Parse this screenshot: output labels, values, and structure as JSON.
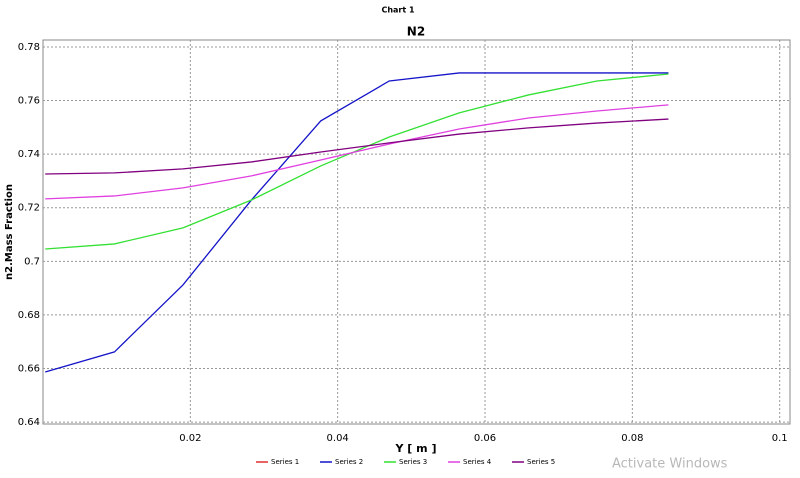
{
  "chart_data": {
    "type": "line",
    "window_title": "Chart 1",
    "title": "N2",
    "x_label": "Y [ m ]",
    "y_label": "n2.Mass Fraction",
    "x": [
      0.0003,
      0.0097,
      0.019,
      0.0283,
      0.0377,
      0.047,
      0.0565,
      0.0659,
      0.0752,
      0.0849
    ],
    "series": [
      {
        "name": "Series 1",
        "color": "#e03030",
        "values": [
          null,
          null,
          null,
          null,
          null,
          null,
          null,
          null,
          null,
          null
        ]
      },
      {
        "name": "Series 2",
        "color": "#1414c8",
        "values": [
          0.6587,
          0.6662,
          0.6912,
          0.7229,
          0.7524,
          0.7673,
          0.7703,
          0.7703,
          0.7703,
          0.7703
        ]
      },
      {
        "name": "Series 3",
        "color": "#33e033",
        "values": [
          0.7046,
          0.7065,
          0.7125,
          0.7229,
          0.7356,
          0.7464,
          0.7554,
          0.7621,
          0.7673,
          0.7699
        ]
      },
      {
        "name": "Series 4",
        "color": "#e040e0",
        "values": [
          0.7233,
          0.7244,
          0.7274,
          0.7319,
          0.7378,
          0.7438,
          0.7494,
          0.7535,
          0.7561,
          0.7584
        ]
      },
      {
        "name": "Series 5",
        "color": "#800080",
        "values": [
          0.7326,
          0.733,
          0.7345,
          0.7371,
          0.7408,
          0.7442,
          0.7475,
          0.7498,
          0.7516,
          0.7531
        ]
      }
    ],
    "xlim": [
      0,
      0.1014
    ],
    "ylim": [
      0.6393,
      0.7826
    ],
    "xticks": [
      0.02,
      0.04,
      0.06,
      0.08,
      0.1
    ],
    "yticks": [
      0.64,
      0.66,
      0.68,
      0.7,
      0.72,
      0.74,
      0.76,
      0.78
    ],
    "grid": true,
    "legend": "bottom",
    "watermark": "Activate Windows"
  }
}
